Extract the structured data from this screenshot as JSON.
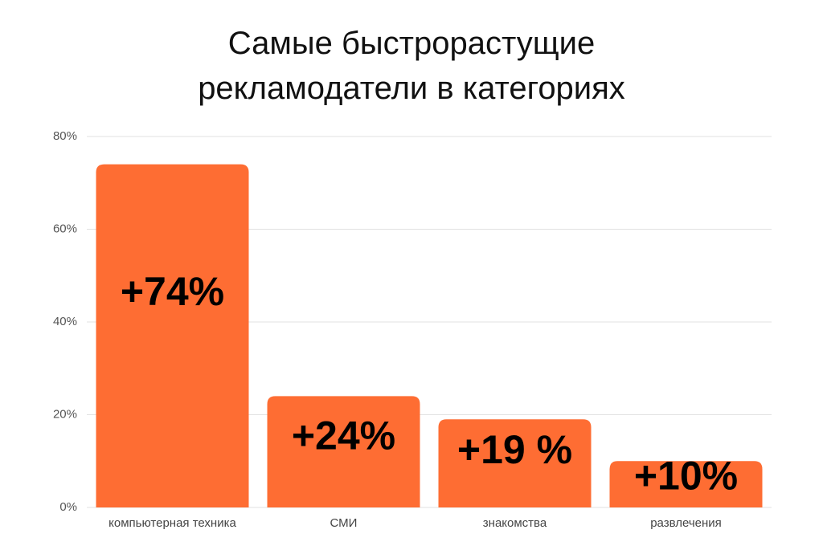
{
  "chart_data": {
    "type": "bar",
    "title": "Самые быстрорастущие рекламодатели в категориях",
    "categories": [
      "компьютерная техника",
      "СМИ",
      "знакомства",
      "развлечения"
    ],
    "values": [
      74,
      24,
      19,
      10
    ],
    "value_labels": [
      "+74%",
      "+24%",
      "+19 %",
      "+10%"
    ],
    "color": "#fe6d33",
    "ylim": [
      0,
      80
    ],
    "yticks": [
      {
        "value": 0,
        "label": "0%"
      },
      {
        "value": 20,
        "label": "20%"
      },
      {
        "value": 40,
        "label": "40%"
      },
      {
        "value": 60,
        "label": "60%"
      },
      {
        "value": 80,
        "label": "80%"
      }
    ],
    "grid": true
  }
}
